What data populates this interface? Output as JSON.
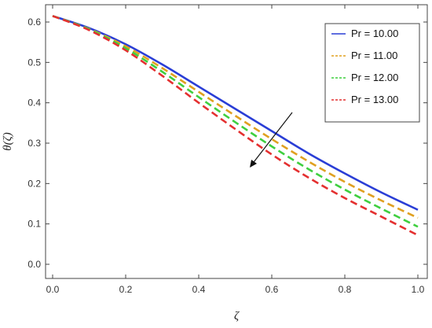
{
  "chart_data": {
    "type": "line",
    "xlabel": "ζ",
    "ylabel": "θ(ζ)",
    "xlim": [
      0,
      1
    ],
    "ylim": [
      0,
      0.6
    ],
    "xticks": [
      "0.0",
      "0.2",
      "0.4",
      "0.6",
      "0.8",
      "1.0"
    ],
    "yticks": [
      "0.0",
      "0.1",
      "0.2",
      "0.3",
      "0.4",
      "0.5",
      "0.6"
    ],
    "legend_position": "top-right",
    "annotation": "arrow indicating curves decrease as Pr increases",
    "x": [
      0.0,
      0.1,
      0.2,
      0.3,
      0.4,
      0.5,
      0.6,
      0.7,
      0.8,
      0.9,
      1.0
    ],
    "series": [
      {
        "name": "Pr = 10.00",
        "color": "#2a3ed6",
        "dash": "solid",
        "values": [
          0.615,
          0.585,
          0.545,
          0.495,
          0.44,
          0.385,
          0.33,
          0.275,
          0.225,
          0.178,
          0.135
        ]
      },
      {
        "name": "Pr = 11.00",
        "color": "#e0a020",
        "dash": "dashed",
        "values": [
          0.615,
          0.583,
          0.54,
          0.486,
          0.427,
          0.368,
          0.31,
          0.255,
          0.204,
          0.158,
          0.115
        ]
      },
      {
        "name": "Pr = 12.00",
        "color": "#3fcf3f",
        "dash": "dashed",
        "values": [
          0.615,
          0.582,
          0.535,
          0.477,
          0.414,
          0.352,
          0.292,
          0.236,
          0.185,
          0.138,
          0.093
        ]
      },
      {
        "name": "Pr = 13.00",
        "color": "#e43030",
        "dash": "dashed",
        "values": [
          0.615,
          0.58,
          0.53,
          0.467,
          0.4,
          0.335,
          0.272,
          0.215,
          0.164,
          0.118,
          0.072
        ]
      }
    ]
  }
}
